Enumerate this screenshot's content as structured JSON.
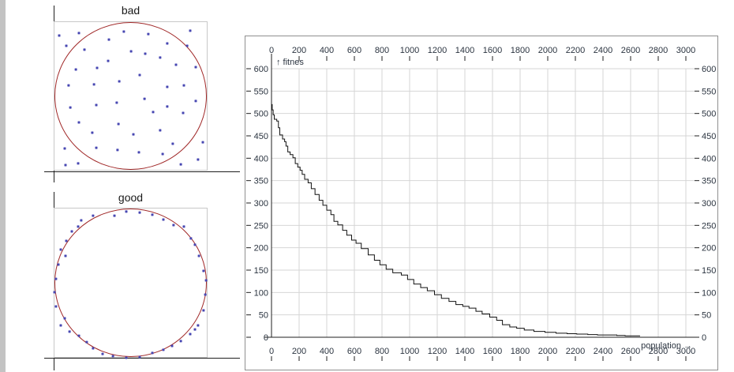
{
  "colors": {
    "dot": "#4747b2",
    "circle": "#a02828",
    "box_border": "#c8c8c8",
    "grid": "#d6d6d6",
    "axis": "#1f1f1f",
    "curve": "#111111",
    "tick_text": "#2b3440",
    "panel_border": "#8f8f8f",
    "window_strip": "#c3c3c3"
  },
  "chart_data": [
    {
      "type": "line",
      "title": "",
      "xlabel": "population",
      "ylabel": "fitnes",
      "x_arrow": "→",
      "y_arrow": "↑",
      "xlim": [
        0,
        3100
      ],
      "ylim": [
        0,
        620
      ],
      "grid": true,
      "x_ticks": [
        0,
        200,
        400,
        600,
        800,
        1000,
        1200,
        1400,
        1600,
        1800,
        2000,
        2200,
        2400,
        2600,
        2800,
        3000
      ],
      "y_ticks": [
        0,
        50,
        100,
        150,
        200,
        250,
        300,
        350,
        400,
        450,
        500,
        550,
        600
      ],
      "series": [
        {
          "name": "fitness",
          "points": [
            [
              0,
              520
            ],
            [
              5,
              508
            ],
            [
              12,
              497
            ],
            [
              20,
              487
            ],
            [
              38,
              483
            ],
            [
              50,
              468
            ],
            [
              60,
              452
            ],
            [
              80,
              443
            ],
            [
              95,
              437
            ],
            [
              105,
              427
            ],
            [
              118,
              414
            ],
            [
              135,
              408
            ],
            [
              155,
              401
            ],
            [
              172,
              388
            ],
            [
              190,
              380
            ],
            [
              207,
              373
            ],
            [
              222,
              364
            ],
            [
              240,
              353
            ],
            [
              265,
              345
            ],
            [
              288,
              332
            ],
            [
              315,
              319
            ],
            [
              345,
              306
            ],
            [
              372,
              295
            ],
            [
              400,
              284
            ],
            [
              430,
              274
            ],
            [
              452,
              259
            ],
            [
              480,
              251
            ],
            [
              515,
              239
            ],
            [
              545,
              228
            ],
            [
              580,
              217
            ],
            [
              612,
              210
            ],
            [
              650,
              198
            ],
            [
              700,
              184
            ],
            [
              745,
              172
            ],
            [
              785,
              162
            ],
            [
              830,
              152
            ],
            [
              878,
              144
            ],
            [
              940,
              139
            ],
            [
              985,
              129
            ],
            [
              1030,
              119
            ],
            [
              1080,
              111
            ],
            [
              1128,
              104
            ],
            [
              1180,
              95
            ],
            [
              1230,
              87
            ],
            [
              1285,
              80
            ],
            [
              1335,
              73
            ],
            [
              1385,
              69
            ],
            [
              1430,
              65
            ],
            [
              1480,
              58
            ],
            [
              1525,
              52
            ],
            [
              1580,
              45
            ],
            [
              1630,
              38
            ],
            [
              1672,
              28
            ],
            [
              1725,
              23
            ],
            [
              1775,
              20
            ],
            [
              1830,
              16
            ],
            [
              1900,
              13
            ],
            [
              1980,
              11
            ],
            [
              2060,
              9
            ],
            [
              2140,
              8
            ],
            [
              2210,
              7
            ],
            [
              2290,
              6
            ],
            [
              2360,
              5
            ],
            [
              2430,
              5
            ],
            [
              2500,
              4
            ],
            [
              2560,
              3
            ],
            [
              2620,
              3
            ],
            [
              2665,
              2
            ]
          ]
        }
      ]
    },
    {
      "type": "scatter",
      "title": "bad",
      "description": "random points scattered in square with inscribed circle",
      "points_pct": [
        [
          3.6,
          9.5
        ],
        [
          16.4,
          7.9
        ],
        [
          35.9,
          12.2
        ],
        [
          45.6,
          6.9
        ],
        [
          61.5,
          8.5
        ],
        [
          73.8,
          14.8
        ],
        [
          88.7,
          6.3
        ],
        [
          8.2,
          16.4
        ],
        [
          20,
          19
        ],
        [
          35.4,
          26.5
        ],
        [
          50.3,
          20.1
        ],
        [
          59.5,
          21.7
        ],
        [
          69.2,
          24.3
        ],
        [
          79.5,
          29.1
        ],
        [
          86.7,
          16.4
        ],
        [
          92.3,
          30.7
        ],
        [
          14.4,
          32.3
        ],
        [
          28.2,
          31.2
        ],
        [
          55.9,
          36
        ],
        [
          9.7,
          42.9
        ],
        [
          26.2,
          42.3
        ],
        [
          42.6,
          40.2
        ],
        [
          73.8,
          43.9
        ],
        [
          84.6,
          42.9
        ],
        [
          59,
          51.9
        ],
        [
          41,
          54.5
        ],
        [
          27.7,
          56.1
        ],
        [
          10.8,
          57.7
        ],
        [
          64.6,
          60.8
        ],
        [
          73.8,
          57.1
        ],
        [
          84.1,
          61.4
        ],
        [
          92.3,
          53.4
        ],
        [
          16.4,
          67.7
        ],
        [
          25.1,
          74.6
        ],
        [
          42.1,
          68.8
        ],
        [
          51.8,
          75.7
        ],
        [
          69.2,
          73
        ],
        [
          77.4,
          82
        ],
        [
          96.9,
          81
        ],
        [
          7.2,
          85.2
        ],
        [
          27.7,
          84.7
        ],
        [
          41.5,
          86.2
        ],
        [
          55.4,
          87.8
        ],
        [
          70.8,
          88.9
        ],
        [
          82.6,
          95.8
        ],
        [
          93.8,
          92.6
        ],
        [
          7.7,
          96.3
        ],
        [
          15.9,
          95.2
        ]
      ]
    },
    {
      "type": "scatter",
      "title": "good",
      "description": "points lying on the circle perimeter",
      "points_pct": [
        [
          47.2,
          2.6
        ],
        [
          55.9,
          3.2
        ],
        [
          39.5,
          5.3
        ],
        [
          64.1,
          4.7
        ],
        [
          25.6,
          5.3
        ],
        [
          71.3,
          7.9
        ],
        [
          17.9,
          8.4
        ],
        [
          15.9,
          12.6
        ],
        [
          77.9,
          11.6
        ],
        [
          84.6,
          12.6
        ],
        [
          11.8,
          15.8
        ],
        [
          89.2,
          20.5
        ],
        [
          8.2,
          22.1
        ],
        [
          91.8,
          24.7
        ],
        [
          4.6,
          27.9
        ],
        [
          7.7,
          32.1
        ],
        [
          94.4,
          32.1
        ],
        [
          3.1,
          37.9
        ],
        [
          97.4,
          42.1
        ],
        [
          1.5,
          47.4
        ],
        [
          99,
          48.4
        ],
        [
          0.5,
          56.3
        ],
        [
          98.5,
          57.9
        ],
        [
          1.5,
          65.8
        ],
        [
          97.4,
          68.4
        ],
        [
          7.2,
          73.7
        ],
        [
          4.6,
          78.4
        ],
        [
          93.8,
          78.4
        ],
        [
          10.3,
          82.6
        ],
        [
          91.8,
          81.1
        ],
        [
          16.4,
          85.3
        ],
        [
          88.7,
          84.2
        ],
        [
          21.5,
          89.5
        ],
        [
          82.6,
          88.9
        ],
        [
          25.6,
          93.7
        ],
        [
          76.9,
          92.1
        ],
        [
          31.8,
          97.4
        ],
        [
          71.3,
          94.7
        ],
        [
          38.5,
          98.9
        ],
        [
          47.2,
          100
        ],
        [
          55.9,
          99.5
        ],
        [
          64.1,
          96.8
        ]
      ]
    }
  ]
}
